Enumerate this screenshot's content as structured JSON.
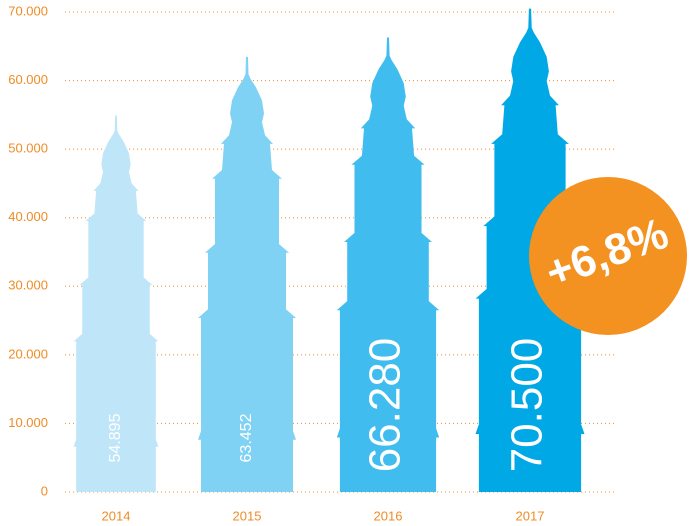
{
  "chart_data": {
    "type": "pictorial-bar",
    "categories": [
      "2014",
      "2015",
      "2016",
      "2017"
    ],
    "values": [
      54895,
      63452,
      66280,
      70500
    ],
    "value_labels": [
      "54.895",
      "63.452",
      "66.280",
      "70.500"
    ],
    "colors": [
      "#bfe6f8",
      "#80d2f4",
      "#40bdee",
      "#00a8e6"
    ],
    "ylim": [
      0,
      70000
    ],
    "yticks": [
      0,
      {
        "value": 10000,
        "label": "10.000"
      },
      {
        "value": 20000,
        "label": "20.000"
      },
      {
        "value": 30000,
        "label": "30.000"
      },
      {
        "value": 40000,
        "label": "40.000"
      },
      {
        "value": 50000,
        "label": "50.000"
      },
      {
        "value": 60000,
        "label": "60.000"
      },
      {
        "value": 70000,
        "label": "70.000"
      }
    ],
    "grid": true,
    "annotation": "+6,8%",
    "annotation_color": "#f39220"
  }
}
